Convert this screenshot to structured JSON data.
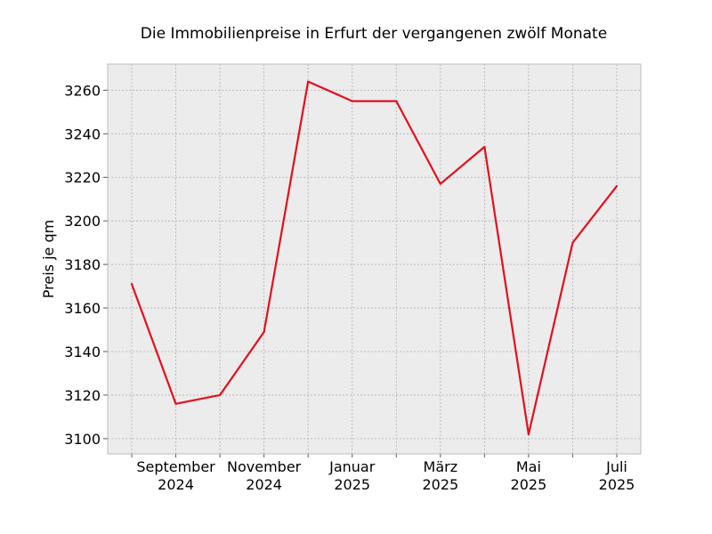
{
  "chart_data": {
    "type": "line",
    "title": "Die Immobilienpreise in Erfurt der vergangenen zwölf Monate",
    "xlabel": "",
    "ylabel": "Preis je qm",
    "x": [
      "2024-08",
      "2024-09",
      "2024-10",
      "2024-11",
      "2024-12",
      "2025-01",
      "2025-02",
      "2025-03",
      "2025-04",
      "2025-05",
      "2025-06",
      "2025-07"
    ],
    "series": [
      {
        "values": [
          3171,
          3116,
          3120,
          3149,
          3264,
          3255,
          3255,
          3217,
          3234,
          3102,
          3190,
          3216
        ]
      }
    ],
    "ylim": [
      3093,
      3272
    ],
    "yticks": [
      3100,
      3120,
      3140,
      3160,
      3180,
      3200,
      3220,
      3240,
      3260
    ],
    "xtick_labels": [
      {
        "x": "2024-09",
        "line1": "September",
        "line2": "2024"
      },
      {
        "x": "2024-11",
        "line1": "November",
        "line2": "2024"
      },
      {
        "x": "2025-01",
        "line1": "Januar",
        "line2": "2025"
      },
      {
        "x": "2025-03",
        "line1": "März",
        "line2": "2025"
      },
      {
        "x": "2025-05",
        "line1": "Mai",
        "line2": "2025"
      },
      {
        "x": "2025-07",
        "line1": "Juli",
        "line2": "2025"
      }
    ],
    "grid": true,
    "colors": {
      "line": "#e3101e",
      "plot_bg": "#ececec",
      "grid": "#b0b0b0",
      "frame": "#bcbcbc"
    }
  }
}
